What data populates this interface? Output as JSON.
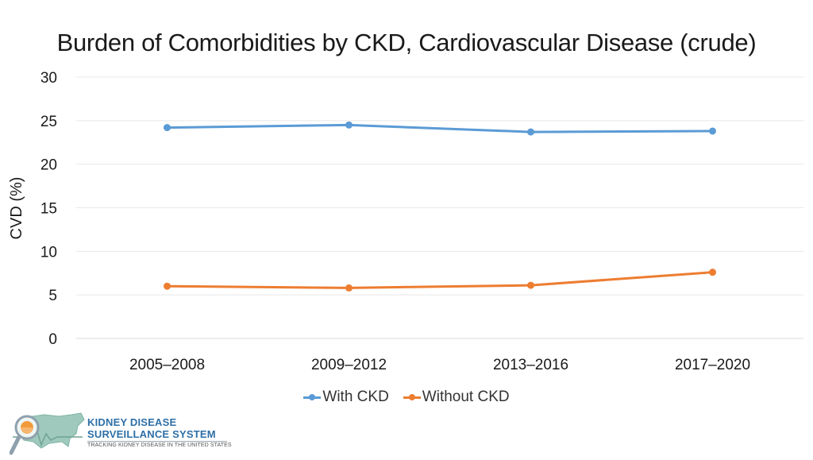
{
  "chart_data": {
    "type": "line",
    "title": "Burden of Comorbidities by CKD, Cardiovascular Disease (crude)",
    "xlabel": "",
    "ylabel": "CVD (%)",
    "categories": [
      "2005–2008",
      "2009–2012",
      "2013–2016",
      "2017–2020"
    ],
    "yticks": [
      0,
      5,
      10,
      15,
      20,
      25,
      30
    ],
    "ylim": [
      0,
      30
    ],
    "grid": true,
    "legend_position": "bottom",
    "series": [
      {
        "name": "With CKD",
        "color": "#5b9bd5",
        "values": [
          24.2,
          24.5,
          23.7,
          23.8
        ]
      },
      {
        "name": "Without CKD",
        "color": "#ed7d31",
        "values": [
          6.0,
          5.8,
          6.1,
          7.6
        ]
      }
    ]
  },
  "logo": {
    "title": "KIDNEY DISEASE",
    "subtitle": "SURVEILLANCE SYSTEM",
    "tagline": "TRACKING KIDNEY DISEASE IN THE UNITED STATES"
  }
}
